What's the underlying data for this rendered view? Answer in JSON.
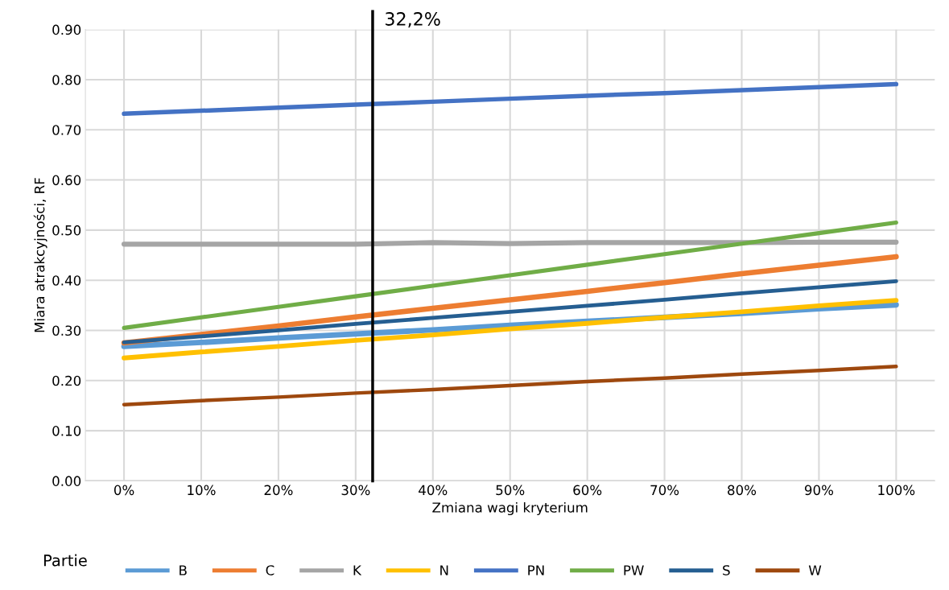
{
  "chart_data": {
    "type": "line",
    "xlabel": "Zmiana wagi kryterium",
    "ylabel": "Miara atrakcyjności, RF",
    "legend_title": "Partie",
    "legend": "bottom",
    "grid": true,
    "marker": "none",
    "line_style": "solid",
    "x": [
      0,
      10,
      20,
      30,
      40,
      50,
      60,
      70,
      80,
      90,
      100
    ],
    "xlim": [
      -5,
      105
    ],
    "xticks": [
      {
        "value": 0,
        "label": "0%"
      },
      {
        "value": 10,
        "label": "10%"
      },
      {
        "value": 20,
        "label": "20%"
      },
      {
        "value": 30,
        "label": "30%"
      },
      {
        "value": 40,
        "label": "40%"
      },
      {
        "value": 50,
        "label": "50%"
      },
      {
        "value": 60,
        "label": "60%"
      },
      {
        "value": 70,
        "label": "70%"
      },
      {
        "value": 80,
        "label": "80%"
      },
      {
        "value": 90,
        "label": "90%"
      },
      {
        "value": 100,
        "label": "100%"
      }
    ],
    "ylim": [
      0,
      0.9
    ],
    "yticks": [
      {
        "value": 0,
        "label": "0.00"
      },
      {
        "value": 0.1,
        "label": "0.10"
      },
      {
        "value": 0.2,
        "label": "0.20"
      },
      {
        "value": 0.3,
        "label": "0.30"
      },
      {
        "value": 0.4,
        "label": "0.40"
      },
      {
        "value": 0.5,
        "label": "0.50"
      },
      {
        "value": 0.6,
        "label": "0.60"
      },
      {
        "value": 0.7,
        "label": "0.70"
      },
      {
        "value": 0.8,
        "label": "0.80"
      },
      {
        "value": 0.9,
        "label": "0.90"
      }
    ],
    "ref_lines": [
      {
        "axis": "x",
        "value": 32.2,
        "label": "32,2%",
        "color": "#000000",
        "line_style": "solid"
      }
    ],
    "series": [
      {
        "name": "B",
        "color": "#5b9bd5",
        "values": [
          0.268,
          0.276,
          0.285,
          0.293,
          0.301,
          0.31,
          0.318,
          0.326,
          0.334,
          0.343,
          0.351
        ]
      },
      {
        "name": "C",
        "color": "#ed7d31",
        "values": [
          0.275,
          0.292,
          0.309,
          0.327,
          0.344,
          0.361,
          0.378,
          0.395,
          0.413,
          0.43,
          0.447
        ]
      },
      {
        "name": "K",
        "color": "#a5a5a5",
        "values": [
          0.472,
          0.472,
          0.472,
          0.472,
          0.475,
          0.473,
          0.475,
          0.475,
          0.475,
          0.476,
          0.476
        ]
      },
      {
        "name": "N",
        "color": "#ffc000",
        "values": [
          0.245,
          0.257,
          0.268,
          0.28,
          0.291,
          0.303,
          0.314,
          0.326,
          0.337,
          0.349,
          0.36
        ]
      },
      {
        "name": "PN",
        "color": "#4472c4",
        "values": [
          0.732,
          0.738,
          0.744,
          0.75,
          0.756,
          0.762,
          0.768,
          0.773,
          0.779,
          0.785,
          0.791
        ]
      },
      {
        "name": "PW",
        "color": "#70ad47",
        "values": [
          0.305,
          0.326,
          0.347,
          0.368,
          0.389,
          0.41,
          0.431,
          0.452,
          0.473,
          0.494,
          0.515
        ]
      },
      {
        "name": "S",
        "color": "#255e91",
        "values": [
          0.276,
          0.288,
          0.3,
          0.313,
          0.325,
          0.337,
          0.349,
          0.361,
          0.374,
          0.386,
          0.398
        ]
      },
      {
        "name": "W",
        "color": "#9e480e",
        "values": [
          0.152,
          0.16,
          0.167,
          0.175,
          0.182,
          0.19,
          0.198,
          0.205,
          0.213,
          0.22,
          0.228
        ]
      }
    ]
  }
}
